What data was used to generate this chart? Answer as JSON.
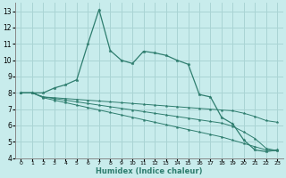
{
  "xlabel": "Humidex (Indice chaleur)",
  "x": [
    0,
    1,
    2,
    3,
    4,
    5,
    6,
    7,
    8,
    9,
    10,
    11,
    12,
    13,
    14,
    15,
    16,
    17,
    18,
    19,
    20,
    21,
    22,
    23
  ],
  "line1": [
    8.0,
    8.0,
    8.0,
    8.3,
    8.5,
    8.8,
    11.0,
    13.1,
    10.6,
    10.0,
    9.8,
    10.55,
    10.45,
    10.3,
    10.0,
    9.75,
    7.9,
    7.75,
    6.5,
    6.1,
    5.1,
    4.5,
    4.4,
    4.5
  ],
  "line2": [
    8.0,
    8.0,
    7.75,
    7.7,
    7.65,
    7.6,
    7.55,
    7.5,
    7.45,
    7.4,
    7.35,
    7.3,
    7.25,
    7.2,
    7.15,
    7.1,
    7.05,
    7.0,
    6.95,
    6.9,
    6.75,
    6.55,
    6.3,
    6.2
  ],
  "line3": [
    8.0,
    8.0,
    7.75,
    7.65,
    7.55,
    7.45,
    7.35,
    7.25,
    7.15,
    7.05,
    6.95,
    6.85,
    6.75,
    6.65,
    6.55,
    6.45,
    6.35,
    6.25,
    6.15,
    5.95,
    5.6,
    5.2,
    4.6,
    4.45
  ],
  "line4": [
    8.0,
    8.0,
    7.7,
    7.55,
    7.4,
    7.25,
    7.1,
    6.95,
    6.8,
    6.65,
    6.5,
    6.35,
    6.2,
    6.05,
    5.9,
    5.75,
    5.6,
    5.45,
    5.3,
    5.1,
    4.9,
    4.7,
    4.5,
    4.45
  ],
  "color": "#2e7d6e",
  "bg_color": "#c8ecec",
  "grid_color": "#aad4d4",
  "ylim": [
    4,
    13.5
  ],
  "xlim": [
    -0.5,
    23.5
  ],
  "yticks": [
    4,
    5,
    6,
    7,
    8,
    9,
    10,
    11,
    12,
    13
  ],
  "xticks": [
    0,
    1,
    2,
    3,
    4,
    5,
    6,
    7,
    8,
    9,
    10,
    11,
    12,
    13,
    14,
    15,
    16,
    17,
    18,
    19,
    20,
    21,
    22,
    23
  ]
}
